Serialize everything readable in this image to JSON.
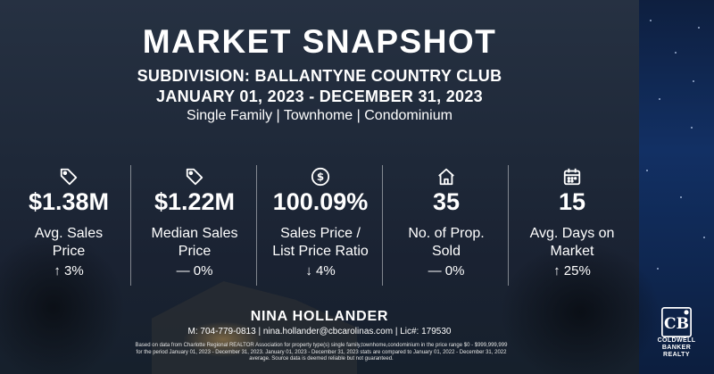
{
  "header": {
    "title": "MARKET SNAPSHOT",
    "subdivision": "SUBDIVISION: BALLANTYNE COUNTRY CLUB",
    "date_range": "JANUARY 01, 2023 - DECEMBER 31, 2023",
    "property_types": "Single Family | Townhome | Condominium"
  },
  "stats": [
    {
      "icon": "price-tag-icon",
      "value": "$1.38M",
      "label_line1": "Avg. Sales",
      "label_line2": "Price",
      "change": "↑ 3%"
    },
    {
      "icon": "price-tag-icon",
      "value": "$1.22M",
      "label_line1": "Median Sales",
      "label_line2": "Price",
      "change": "— 0%"
    },
    {
      "icon": "dollar-circle-icon",
      "value": "100.09%",
      "label_line1": "Sales Price /",
      "label_line2": "List Price Ratio",
      "change": "↓ 4%"
    },
    {
      "icon": "house-icon",
      "value": "35",
      "label_line1": "No. of Prop.",
      "label_line2": "Sold",
      "change": "— 0%"
    },
    {
      "icon": "calendar-icon",
      "value": "15",
      "label_line1": "Avg. Days on",
      "label_line2": "Market",
      "change": "↑ 25%"
    }
  ],
  "footer": {
    "agent_name": "NINA HOLLANDER",
    "contact": "M: 704-779-0813 | nina.hollander@cbcarolinas.com | Lic#: 179530",
    "disclaimer": "Based on data from Charlotte Regional REALTOR Association for property type(s) single family,townhome,condominium in the price range $0 - $999,999,999 for the period January 01, 2023 - December 31, 2023. January 01, 2023 - December 31, 2023 stats are compared to January 01, 2022 - December 31, 2022 average. Source data is deemed reliable but not guaranteed."
  },
  "logo": {
    "brand_line1": "COLDWELL",
    "brand_line2": "BANKER",
    "brand_line3": "REALTY"
  }
}
